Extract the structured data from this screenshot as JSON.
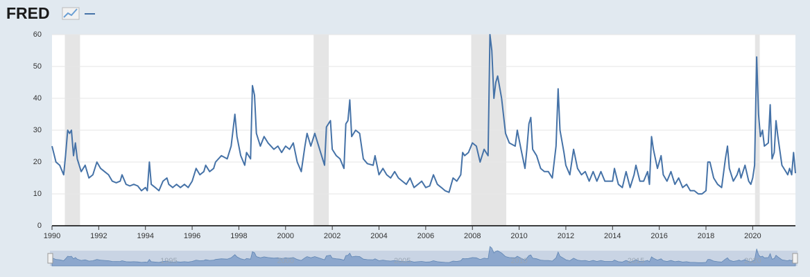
{
  "logo": "FRED",
  "chart_data": {
    "type": "line",
    "x": [
      1990.0,
      1990.17,
      1990.33,
      1990.5,
      1990.58,
      1990.67,
      1990.75,
      1990.83,
      1990.92,
      1991.0,
      1991.08,
      1991.25,
      1991.42,
      1991.58,
      1991.75,
      1991.92,
      1992.08,
      1992.25,
      1992.42,
      1992.58,
      1992.75,
      1992.92,
      1993.0,
      1993.17,
      1993.33,
      1993.5,
      1993.67,
      1993.83,
      1994.0,
      1994.08,
      1994.17,
      1994.25,
      1994.42,
      1994.58,
      1994.75,
      1994.92,
      1995.0,
      1995.17,
      1995.33,
      1995.5,
      1995.67,
      1995.83,
      1996.0,
      1996.17,
      1996.33,
      1996.5,
      1996.58,
      1996.75,
      1996.92,
      1997.0,
      1997.25,
      1997.5,
      1997.67,
      1997.83,
      1997.92,
      1998.08,
      1998.25,
      1998.33,
      1998.5,
      1998.58,
      1998.67,
      1998.75,
      1998.92,
      1999.08,
      1999.25,
      1999.5,
      1999.67,
      1999.83,
      2000.0,
      2000.17,
      2000.33,
      2000.5,
      2000.67,
      2000.83,
      2000.92,
      2001.08,
      2001.25,
      2001.5,
      2001.67,
      2001.75,
      2001.92,
      2002.0,
      2002.17,
      2002.33,
      2002.5,
      2002.58,
      2002.67,
      2002.75,
      2002.83,
      2003.0,
      2003.17,
      2003.33,
      2003.5,
      2003.75,
      2003.83,
      2004.0,
      2004.17,
      2004.33,
      2004.5,
      2004.67,
      2004.83,
      2005.0,
      2005.17,
      2005.33,
      2005.5,
      2005.67,
      2005.83,
      2006.0,
      2006.17,
      2006.33,
      2006.5,
      2006.67,
      2006.83,
      2007.0,
      2007.17,
      2007.33,
      2007.5,
      2007.58,
      2007.67,
      2007.83,
      2008.0,
      2008.17,
      2008.33,
      2008.5,
      2008.67,
      2008.75,
      2008.83,
      2008.92,
      2009.0,
      2009.08,
      2009.25,
      2009.42,
      2009.58,
      2009.83,
      2009.92,
      2010.08,
      2010.25,
      2010.33,
      2010.42,
      2010.5,
      2010.58,
      2010.75,
      2010.92,
      2011.08,
      2011.25,
      2011.42,
      2011.58,
      2011.67,
      2011.75,
      2011.92,
      2012.0,
      2012.17,
      2012.33,
      2012.5,
      2012.67,
      2012.83,
      2013.0,
      2013.17,
      2013.33,
      2013.5,
      2013.67,
      2013.83,
      2014.0,
      2014.08,
      2014.25,
      2014.42,
      2014.58,
      2014.75,
      2014.92,
      2015.0,
      2015.17,
      2015.33,
      2015.5,
      2015.58,
      2015.67,
      2015.75,
      2015.92,
      2016.08,
      2016.17,
      2016.33,
      2016.5,
      2016.67,
      2016.83,
      2017.0,
      2017.17,
      2017.33,
      2017.5,
      2017.67,
      2017.83,
      2018.0,
      2018.08,
      2018.17,
      2018.33,
      2018.5,
      2018.67,
      2018.83,
      2018.92,
      2019.0,
      2019.17,
      2019.33,
      2019.42,
      2019.5,
      2019.67,
      2019.83,
      2019.92,
      2020.0,
      2020.08,
      2020.17,
      2020.25,
      2020.33,
      2020.42,
      2020.5,
      2020.67,
      2020.75,
      2020.83,
      2020.92,
      2021.0,
      2021.08,
      2021.25,
      2021.42,
      2021.5,
      2021.58,
      2021.67,
      2021.75,
      2021.83
    ],
    "series": [
      {
        "color": "#4572a7",
        "values": [
          25,
          20,
          19,
          16,
          22,
          30,
          29,
          30,
          22,
          26,
          21,
          17,
          19,
          15,
          16,
          20,
          18,
          17,
          16,
          14,
          13.5,
          14,
          16,
          13,
          12.5,
          13,
          12.5,
          11,
          12,
          11,
          20,
          13,
          12,
          11,
          14,
          15,
          13,
          12,
          13,
          12,
          13,
          12,
          14,
          18,
          16,
          17,
          19,
          17,
          18,
          20,
          22,
          21,
          25,
          35,
          28,
          22,
          19,
          23,
          21,
          44,
          41,
          29,
          25,
          28,
          26,
          24,
          25,
          23,
          25,
          24,
          26,
          20,
          17,
          25,
          29,
          25,
          29,
          23,
          19,
          31,
          33,
          24,
          22,
          21,
          18,
          32,
          33,
          39.5,
          28,
          30,
          29,
          21,
          19.5,
          19,
          22,
          16,
          18,
          16,
          15,
          17,
          15,
          14,
          13,
          15,
          12,
          13,
          14,
          12,
          12.5,
          16,
          13,
          12,
          11,
          10.5,
          15,
          14,
          16,
          23,
          22,
          23,
          26,
          25,
          20,
          24,
          22,
          60,
          55,
          40,
          45,
          47,
          40,
          29,
          26,
          25,
          30,
          24,
          18,
          24,
          32,
          34,
          24,
          22,
          18,
          17,
          17,
          15,
          25,
          43,
          30,
          23,
          19,
          16,
          24,
          18,
          16,
          17,
          14,
          17,
          14,
          17,
          14,
          14,
          14,
          18,
          13,
          12,
          17,
          12,
          16,
          19,
          14,
          14,
          17,
          13,
          28,
          24,
          18,
          22,
          16,
          14,
          17,
          13,
          15,
          12,
          13,
          11,
          11,
          10,
          10,
          11,
          20,
          20,
          15,
          13,
          12,
          21,
          25,
          18,
          14,
          16,
          18,
          15,
          19,
          14,
          13,
          15,
          19,
          53,
          35,
          28,
          30,
          25,
          26,
          38,
          21,
          23,
          33,
          28,
          19,
          17,
          16,
          18,
          16,
          23,
          16.5
        ]
      }
    ],
    "recessions": [
      [
        1990.55,
        1991.2
      ],
      [
        2001.2,
        2001.85
      ],
      [
        2007.95,
        2009.45
      ],
      [
        2020.1,
        2020.3
      ]
    ],
    "xlim": [
      1990,
      2021.83
    ],
    "ylim": [
      0,
      60
    ],
    "xticks": [
      1990,
      1992,
      1994,
      1996,
      1998,
      2000,
      2002,
      2004,
      2006,
      2008,
      2010,
      2012,
      2014,
      2016,
      2018,
      2020
    ],
    "yticks": [
      0,
      10,
      20,
      30,
      40,
      50,
      60
    ],
    "grid": true,
    "navigator_ticks": [
      1995,
      2000,
      2005,
      2010,
      2015,
      2020
    ]
  }
}
